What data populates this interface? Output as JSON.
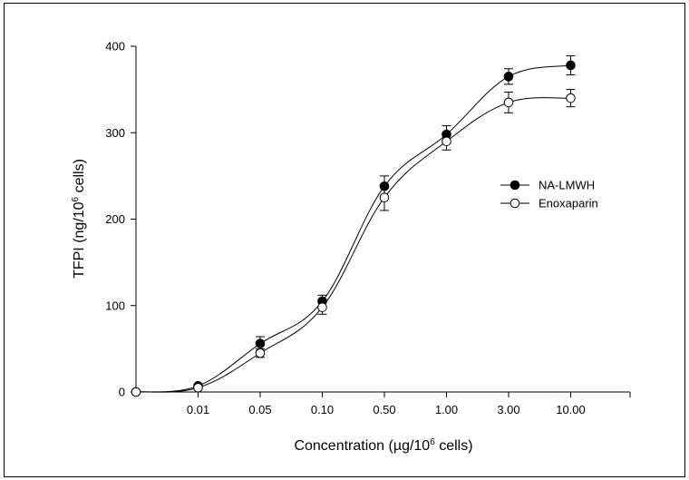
{
  "chart_data": {
    "type": "line",
    "categories": [
      "",
      "0.01",
      "0.05",
      "0.10",
      "0.50",
      "1.00",
      "3.00",
      "10.00"
    ],
    "xlabel_parts": {
      "before": "Concentration (",
      "mu": "µ",
      "after": "g/10",
      "sup": "6",
      "tail": " cells)"
    },
    "ylabel_parts": {
      "before": "TFPI (ng/10",
      "sup": "6",
      "tail": " cells)"
    },
    "ylim": [
      0,
      400
    ],
    "yticks": [
      "0",
      "100",
      "200",
      "300",
      "400"
    ],
    "ytick_values": [
      0,
      100,
      200,
      300,
      400
    ],
    "series": [
      {
        "name": "NA-LMWH",
        "marker": "filled-circle",
        "color": "#000000",
        "values": [
          0,
          7,
          56,
          105,
          238,
          298,
          365,
          378
        ],
        "errors": [
          0,
          0,
          8,
          7,
          12,
          10,
          9,
          11
        ]
      },
      {
        "name": "Enoxaparin",
        "marker": "open-circle",
        "color": "#000000",
        "values": [
          0,
          5,
          45,
          98,
          225,
          290,
          335,
          340
        ],
        "errors": [
          0,
          0,
          5,
          8,
          15,
          10,
          12,
          10
        ]
      }
    ],
    "legend_position": "right-middle"
  }
}
